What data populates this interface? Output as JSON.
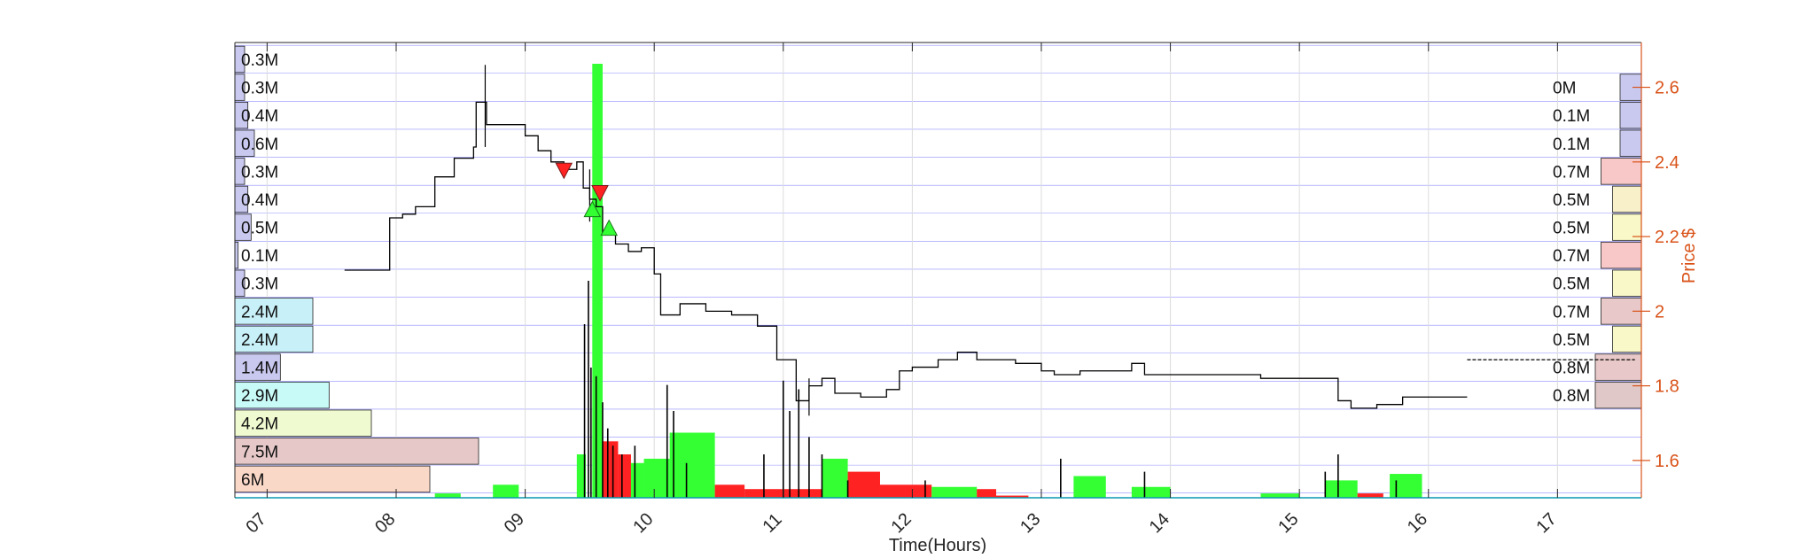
{
  "chart_data": {
    "type": "line",
    "xlabel": "Time(Hours)",
    "ylabel": "Price $",
    "xlim": [
      6.75,
      17.65
    ],
    "ylim": [
      1.5,
      2.72
    ],
    "x_ticks": [
      7,
      8,
      9,
      10,
      11,
      12,
      13,
      14,
      15,
      16,
      17
    ],
    "x_tick_labels": [
      "07",
      "08",
      "09",
      "10",
      "11",
      "12",
      "13",
      "14",
      "15",
      "16",
      "17"
    ],
    "y_ticks": [
      1.6,
      1.8,
      2.0,
      2.2,
      2.4,
      2.6
    ],
    "y_tick_labels": [
      "1.6",
      "1.8",
      "2",
      "2.2",
      "2.4",
      "2.6"
    ],
    "grid": true,
    "colors": {
      "price_line": "#000000",
      "axis_right": "#d95319",
      "grid_line": "#3333ff",
      "buy_marker": "#33ff33",
      "sell_marker": "#ff2222",
      "up_volume": "#33ff33",
      "down_volume": "#ff2222",
      "bar_volume": "#000000"
    },
    "price_series": {
      "x": [
        7.6,
        7.9,
        7.95,
        8.05,
        8.15,
        8.3,
        8.45,
        8.6,
        8.62,
        8.7,
        8.85,
        9.0,
        9.1,
        9.2,
        9.3,
        9.4,
        9.45,
        9.5,
        9.55,
        9.6,
        9.7,
        9.8,
        9.9,
        10.0,
        10.05,
        10.2,
        10.4,
        10.6,
        10.8,
        10.95,
        11.1,
        11.2,
        11.3,
        11.4,
        11.6,
        11.8,
        11.9,
        12.0,
        12.2,
        12.35,
        12.5,
        12.8,
        13.0,
        13.1,
        13.3,
        13.7,
        13.8,
        14.0,
        14.3,
        14.7,
        15.0,
        15.3,
        15.4,
        15.6,
        15.8,
        15.9,
        16.0,
        16.3
      ],
      "y": [
        2.11,
        2.11,
        2.25,
        2.26,
        2.28,
        2.36,
        2.41,
        2.44,
        2.56,
        2.5,
        2.5,
        2.47,
        2.43,
        2.4,
        2.38,
        2.4,
        2.33,
        2.3,
        2.28,
        2.21,
        2.18,
        2.16,
        2.17,
        2.1,
        1.99,
        2.02,
        2.0,
        1.99,
        1.96,
        1.87,
        1.76,
        1.8,
        1.82,
        1.78,
        1.77,
        1.79,
        1.84,
        1.85,
        1.87,
        1.89,
        1.87,
        1.86,
        1.84,
        1.83,
        1.84,
        1.86,
        1.83,
        1.83,
        1.83,
        1.82,
        1.82,
        1.76,
        1.74,
        1.75,
        1.77,
        1.77,
        1.77,
        1.77
      ],
      "spikes": [
        {
          "x": 8.69,
          "low": 2.44,
          "high": 2.66
        },
        {
          "x": 9.5,
          "low": 2.24,
          "high": 2.38
        },
        {
          "x": 11.2,
          "low": 1.72,
          "high": 1.82
        }
      ]
    },
    "right_segment": {
      "x": [
        16.3,
        17.6
      ],
      "y": [
        1.87,
        1.87
      ]
    },
    "buy_markers": [
      {
        "x": 9.52,
        "y": 2.27
      },
      {
        "x": 9.65,
        "y": 2.22
      }
    ],
    "sell_markers": [
      {
        "x": 9.3,
        "y": 2.38
      },
      {
        "x": 9.58,
        "y": 2.32
      }
    ],
    "volume_bars": [
      {
        "x0": 9.52,
        "x1": 9.6,
        "value": 1.0,
        "color": "up"
      },
      {
        "x0": 9.4,
        "x1": 9.47,
        "value": 0.1,
        "color": "up"
      },
      {
        "x0": 9.6,
        "x1": 9.72,
        "value": 0.13,
        "color": "down"
      },
      {
        "x0": 9.72,
        "x1": 9.82,
        "value": 0.1,
        "color": "down"
      },
      {
        "x0": 9.82,
        "x1": 9.92,
        "value": 0.08,
        "color": "up"
      },
      {
        "x0": 9.92,
        "x1": 10.12,
        "value": 0.09,
        "color": "up"
      },
      {
        "x0": 10.12,
        "x1": 10.47,
        "value": 0.15,
        "color": "up"
      },
      {
        "x0": 10.47,
        "x1": 10.7,
        "value": 0.03,
        "color": "down"
      },
      {
        "x0": 10.7,
        "x1": 11.3,
        "value": 0.02,
        "color": "down"
      },
      {
        "x0": 11.3,
        "x1": 11.5,
        "value": 0.09,
        "color": "up"
      },
      {
        "x0": 11.5,
        "x1": 11.75,
        "value": 0.06,
        "color": "down"
      },
      {
        "x0": 11.75,
        "x1": 12.15,
        "value": 0.03,
        "color": "down"
      },
      {
        "x0": 12.15,
        "x1": 12.5,
        "value": 0.025,
        "color": "up"
      },
      {
        "x0": 12.5,
        "x1": 12.65,
        "value": 0.02,
        "color": "down"
      },
      {
        "x0": 12.65,
        "x1": 12.9,
        "value": 0.005,
        "color": "down"
      },
      {
        "x0": 13.25,
        "x1": 13.5,
        "value": 0.05,
        "color": "up"
      },
      {
        "x0": 13.7,
        "x1": 14.0,
        "value": 0.025,
        "color": "up"
      },
      {
        "x0": 14.7,
        "x1": 15.0,
        "value": 0.01,
        "color": "up"
      },
      {
        "x0": 15.2,
        "x1": 15.45,
        "value": 0.04,
        "color": "up"
      },
      {
        "x0": 15.45,
        "x1": 15.65,
        "value": 0.01,
        "color": "down"
      },
      {
        "x0": 15.7,
        "x1": 15.95,
        "value": 0.055,
        "color": "up"
      },
      {
        "x0": 8.3,
        "x1": 8.5,
        "value": 0.01,
        "color": "up"
      },
      {
        "x0": 8.75,
        "x1": 8.95,
        "value": 0.03,
        "color": "up"
      }
    ],
    "volume_spikes": [
      {
        "x": 9.46,
        "value": 0.4
      },
      {
        "x": 9.49,
        "value": 0.5
      },
      {
        "x": 9.51,
        "value": 0.3
      },
      {
        "x": 9.55,
        "value": 0.28
      },
      {
        "x": 9.6,
        "value": 0.22
      },
      {
        "x": 9.64,
        "value": 0.16
      },
      {
        "x": 9.68,
        "value": 0.12
      },
      {
        "x": 9.75,
        "value": 0.1
      },
      {
        "x": 9.85,
        "value": 0.12
      },
      {
        "x": 10.1,
        "value": 0.26
      },
      {
        "x": 10.15,
        "value": 0.2
      },
      {
        "x": 10.25,
        "value": 0.08
      },
      {
        "x": 10.85,
        "value": 0.1
      },
      {
        "x": 11.0,
        "value": 0.27
      },
      {
        "x": 11.05,
        "value": 0.2
      },
      {
        "x": 11.12,
        "value": 0.25
      },
      {
        "x": 11.2,
        "value": 0.14
      },
      {
        "x": 11.3,
        "value": 0.1
      },
      {
        "x": 11.5,
        "value": 0.04
      },
      {
        "x": 12.1,
        "value": 0.04
      },
      {
        "x": 13.15,
        "value": 0.09
      },
      {
        "x": 13.8,
        "value": 0.06
      },
      {
        "x": 15.2,
        "value": 0.06
      },
      {
        "x": 15.3,
        "value": 0.1
      },
      {
        "x": 15.75,
        "value": 0.04
      }
    ],
    "left_volume_profile": [
      {
        "price": 2.675,
        "value": 0.3,
        "label": "0.3M",
        "color": "#c9c9f0"
      },
      {
        "price": 2.6,
        "value": 0.3,
        "label": "0.3M",
        "color": "#c9c9f0"
      },
      {
        "price": 2.525,
        "value": 0.4,
        "label": "0.4M",
        "color": "#c9c9f0"
      },
      {
        "price": 2.45,
        "value": 0.6,
        "label": "0.6M",
        "color": "#c9c9f0"
      },
      {
        "price": 2.375,
        "value": 0.3,
        "label": "0.3M",
        "color": "#c9c9f0"
      },
      {
        "price": 2.3,
        "value": 0.4,
        "label": "0.4M",
        "color": "#c9c9f0"
      },
      {
        "price": 2.225,
        "value": 0.5,
        "label": "0.5M",
        "color": "#c9c9f0"
      },
      {
        "price": 2.15,
        "value": 0.1,
        "label": "0.1M",
        "color": "#c9c9f0"
      },
      {
        "price": 2.075,
        "value": 0.3,
        "label": "0.3M",
        "color": "#c9c9f0"
      },
      {
        "price": 2.0,
        "value": 2.4,
        "label": "2.4M",
        "color": "#c8f0f8"
      },
      {
        "price": 1.925,
        "value": 2.4,
        "label": "2.4M",
        "color": "#c8f0f8"
      },
      {
        "price": 1.85,
        "value": 1.4,
        "label": "1.4M",
        "color": "#c9c9f0"
      },
      {
        "price": 1.775,
        "value": 2.9,
        "label": "2.9M",
        "color": "#c8faf8"
      },
      {
        "price": 1.7,
        "value": 4.2,
        "label": "4.2M",
        "color": "#f0fad0"
      },
      {
        "price": 1.625,
        "value": 7.5,
        "label": "7.5M",
        "color": "#e6c8c8"
      },
      {
        "price": 1.55,
        "value": 6.0,
        "label": "6M",
        "color": "#fad8c8"
      }
    ],
    "right_volume_profile": [
      {
        "price": 2.6,
        "value": 0.0,
        "label": "0M",
        "color": "#c9c9f0"
      },
      {
        "price": 2.525,
        "value": 0.1,
        "label": "0.1M",
        "color": "#c9c9f0"
      },
      {
        "price": 2.45,
        "value": 0.1,
        "label": "0.1M",
        "color": "#c9c9f0"
      },
      {
        "price": 2.375,
        "value": 0.7,
        "label": "0.7M",
        "color": "#f8c8c8"
      },
      {
        "price": 2.3,
        "value": 0.5,
        "label": "0.5M",
        "color": "#f8f0c8"
      },
      {
        "price": 2.225,
        "value": 0.5,
        "label": "0.5M",
        "color": "#f8f8c8"
      },
      {
        "price": 2.15,
        "value": 0.7,
        "label": "0.7M",
        "color": "#f8c8c8"
      },
      {
        "price": 2.075,
        "value": 0.5,
        "label": "0.5M",
        "color": "#f8f8c8"
      },
      {
        "price": 2.0,
        "value": 0.7,
        "label": "0.7M",
        "color": "#e8c8c8"
      },
      {
        "price": 1.925,
        "value": 0.5,
        "label": "0.5M",
        "color": "#f8f8c8"
      },
      {
        "price": 1.85,
        "value": 0.8,
        "label": "0.8M",
        "color": "#e8c8c8"
      },
      {
        "price": 1.775,
        "value": 0.8,
        "label": "0.8M",
        "color": "#e0c8c8"
      }
    ]
  }
}
